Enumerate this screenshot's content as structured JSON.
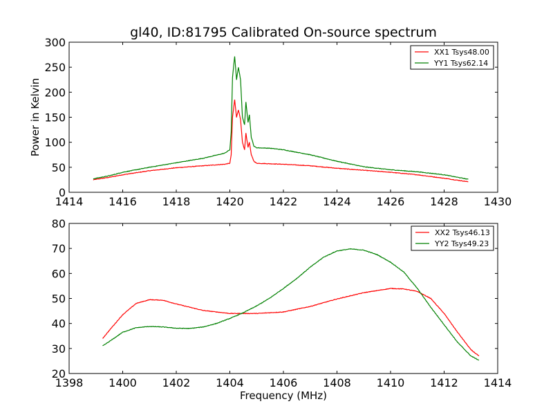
{
  "figure": {
    "title": "gl40, ID:81795 Calibrated On-source spectrum"
  },
  "chart_data": [
    {
      "type": "line",
      "title": "gl40, ID:81795 Calibrated On-source spectrum",
      "xlabel": "",
      "ylabel": "Power in Kelvin",
      "xlim": [
        1414,
        1430
      ],
      "ylim": [
        0,
        300
      ],
      "xticks": [
        "1414",
        "1416",
        "1418",
        "1420",
        "1422",
        "1424",
        "1426",
        "1428",
        "1430"
      ],
      "yticks": [
        "0",
        "50",
        "100",
        "150",
        "200",
        "250",
        "300"
      ],
      "grid": false,
      "legend_position": "top-right",
      "series": [
        {
          "name": "XX1 Tsys48.00",
          "color": "#ff0000",
          "x": [
            1414.9,
            1415.5,
            1416.0,
            1417.0,
            1418.0,
            1419.0,
            1419.8,
            1420.0,
            1420.05,
            1420.1,
            1420.18,
            1420.25,
            1420.32,
            1420.4,
            1420.47,
            1420.55,
            1420.6,
            1420.68,
            1420.73,
            1420.8,
            1420.9,
            1421.0,
            1421.5,
            1422.0,
            1423.0,
            1424.0,
            1425.0,
            1426.0,
            1427.0,
            1428.0,
            1428.9
          ],
          "y": [
            25,
            30,
            35,
            43,
            49,
            53,
            56,
            58,
            75,
            150,
            185,
            150,
            165,
            145,
            100,
            85,
            118,
            90,
            100,
            75,
            62,
            58,
            57,
            56,
            53,
            48,
            44,
            40,
            35,
            28,
            21
          ]
        },
        {
          "name": "YY1 Tsys62.14",
          "color": "#008000",
          "x": [
            1414.9,
            1415.5,
            1416.0,
            1417.0,
            1418.0,
            1419.0,
            1419.8,
            1420.0,
            1420.05,
            1420.1,
            1420.18,
            1420.25,
            1420.32,
            1420.4,
            1420.47,
            1420.55,
            1420.6,
            1420.68,
            1420.73,
            1420.8,
            1420.9,
            1421.0,
            1421.5,
            1422.0,
            1423.0,
            1424.0,
            1425.0,
            1426.0,
            1427.0,
            1428.0,
            1428.9
          ],
          "y": [
            27,
            33,
            40,
            50,
            59,
            68,
            78,
            85,
            120,
            230,
            272,
            225,
            250,
            225,
            150,
            135,
            180,
            140,
            155,
            110,
            92,
            89,
            88,
            85,
            75,
            62,
            51,
            45,
            41,
            35,
            26
          ]
        }
      ]
    },
    {
      "type": "line",
      "title": "",
      "xlabel": "Frequency (MHz)",
      "ylabel": "",
      "xlim": [
        1398,
        1414
      ],
      "ylim": [
        20,
        80
      ],
      "xticks": [
        "1398",
        "1400",
        "1402",
        "1404",
        "1406",
        "1408",
        "1410",
        "1412",
        "1414"
      ],
      "yticks": [
        "20",
        "30",
        "40",
        "50",
        "60",
        "70",
        "80"
      ],
      "grid": false,
      "legend_position": "top-right",
      "series": [
        {
          "name": "XX2 Tsys46.13",
          "color": "#ff0000",
          "x": [
            1399.25,
            1399.6,
            1400.0,
            1400.5,
            1401.0,
            1401.5,
            1402.0,
            1403.0,
            1404.0,
            1405.0,
            1406.0,
            1407.0,
            1408.0,
            1409.0,
            1410.0,
            1410.5,
            1411.0,
            1411.5,
            1412.0,
            1412.5,
            1413.0,
            1413.3
          ],
          "y": [
            34,
            38.5,
            43.5,
            48,
            49.5,
            49.3,
            47.8,
            45.2,
            44.0,
            44.0,
            44.6,
            46.8,
            49.8,
            52.3,
            54.0,
            53.8,
            52.8,
            50.0,
            44.0,
            36.5,
            29.5,
            27.0
          ]
        },
        {
          "name": "YY2 Tsys49.23",
          "color": "#008000",
          "x": [
            1399.25,
            1399.6,
            1400.0,
            1400.5,
            1401.0,
            1401.5,
            1402.0,
            1402.5,
            1403.0,
            1403.5,
            1404.0,
            1404.5,
            1405.0,
            1405.5,
            1406.0,
            1406.5,
            1407.0,
            1407.5,
            1408.0,
            1408.5,
            1409.0,
            1409.5,
            1410.0,
            1410.5,
            1411.0,
            1411.5,
            1412.0,
            1412.5,
            1413.0,
            1413.3
          ],
          "y": [
            31,
            33.5,
            36.5,
            38.3,
            38.8,
            38.6,
            38.1,
            38.0,
            38.6,
            40.0,
            42.0,
            44.3,
            47.0,
            50.2,
            54.0,
            58.0,
            62.5,
            66.5,
            69.0,
            69.8,
            69.3,
            67.5,
            64.5,
            60.5,
            54.0,
            46.5,
            39.5,
            32.5,
            27.0,
            25.3
          ]
        }
      ]
    }
  ]
}
